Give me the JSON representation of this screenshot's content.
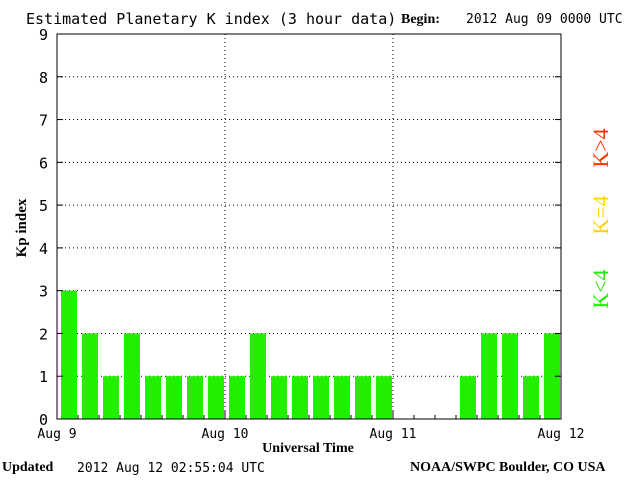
{
  "header": {
    "title": "Estimated Planetary K index (3 hour data)",
    "begin_label": "Begin:",
    "begin_value": "2012 Aug 09 0000 UTC"
  },
  "footer": {
    "updated_label": "Updated",
    "updated_value": "2012 Aug 12 02:55:04 UTC",
    "source": "NOAA/SWPC Boulder, CO USA"
  },
  "colors": {
    "k_below_4": "#22ee00",
    "k_equal_4": "#ffd400",
    "k_above_4": "#ff3300",
    "axis": "#000000",
    "grid": "#000000"
  },
  "chart_data": {
    "type": "bar",
    "xlabel": "Universal Time",
    "ylabel": "Kp index",
    "ylim": [
      0,
      9
    ],
    "yticks": [
      0,
      1,
      2,
      3,
      4,
      5,
      6,
      7,
      8,
      9
    ],
    "grid": true,
    "x_tick_labels": [
      "Aug 9",
      "Aug 10",
      "Aug 11",
      "Aug 12"
    ],
    "interval_hours": 3,
    "values": [
      3,
      2,
      1,
      2,
      1,
      1,
      1,
      1,
      1,
      2,
      1,
      1,
      1,
      1,
      1,
      1,
      null,
      null,
      null,
      1,
      2,
      2,
      1,
      2
    ],
    "legend": [
      {
        "label": "K<4",
        "color": "#22ee00"
      },
      {
        "label": "K=4",
        "color": "#ffd400"
      },
      {
        "label": "K>4",
        "color": "#ff3300"
      }
    ],
    "legend_placement": "right"
  }
}
